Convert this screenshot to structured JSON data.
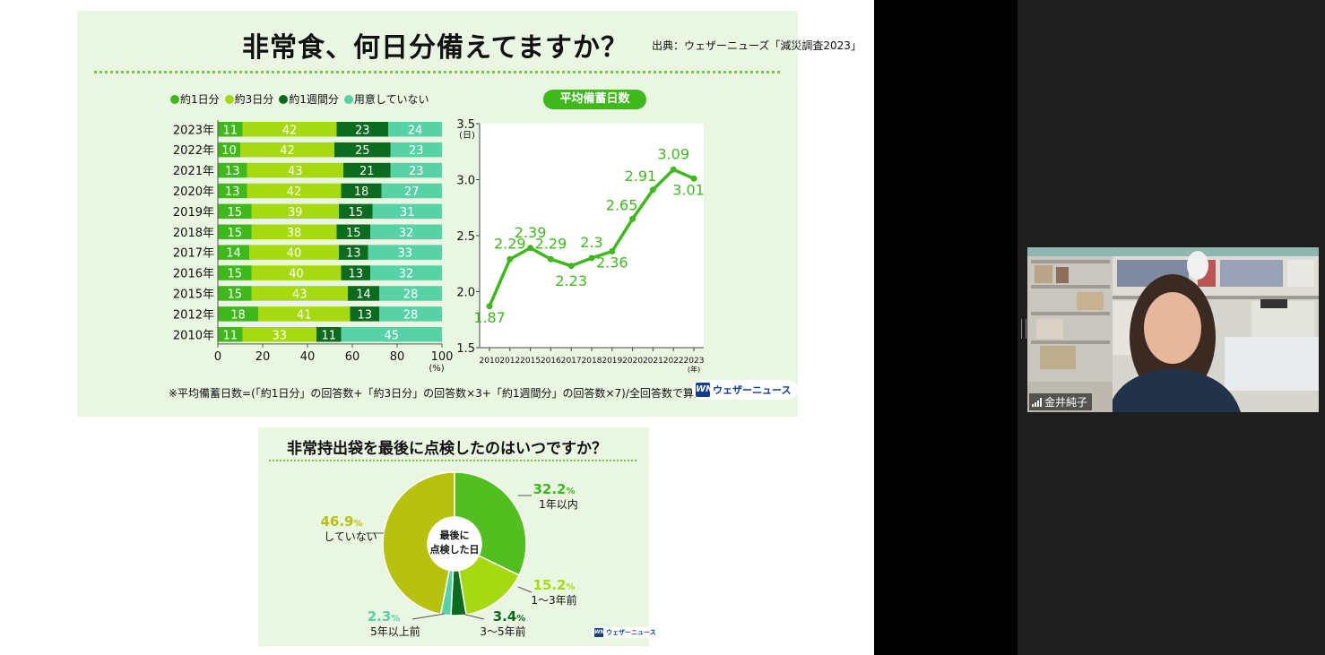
{
  "slide": {
    "title": "非常食、何日分備えてますか？",
    "source": "出典：ウェザーニューズ「減災調査2023」",
    "legend": [
      {
        "label": "約1日分",
        "color": "#3fb81c"
      },
      {
        "label": "約3日分",
        "color": "#a6d90f"
      },
      {
        "label": "約1週間分",
        "color": "#0d6b1f"
      },
      {
        "label": "用意していない",
        "color": "#57d1a6"
      }
    ],
    "avg_label": "平均備蓄日数",
    "footnote": "※平均備蓄日数=(「約1日分」の回答数+「約3日分」の回答数×3+「約1週間分」の回答数×7)/全回答数で算出",
    "logo_text": "ウェザーニュース",
    "logo_mark": "WN",
    "subtitle2": "非常持出袋を最後に点検したのはいつですか？",
    "donut_center": [
      "最後に",
      "点検した日"
    ]
  },
  "chart_data": [
    {
      "type": "bar",
      "orientation": "horizontal-stacked",
      "categories": [
        "2023年",
        "2022年",
        "2021年",
        "2020年",
        "2019年",
        "2018年",
        "2017年",
        "2016年",
        "2015年",
        "2012年",
        "2010年"
      ],
      "series": [
        {
          "name": "約1日分",
          "values": [
            11,
            10,
            13,
            13,
            15,
            15,
            14,
            15,
            15,
            18,
            11
          ]
        },
        {
          "name": "約3日分",
          "values": [
            42,
            42,
            43,
            42,
            39,
            38,
            40,
            40,
            43,
            41,
            33
          ]
        },
        {
          "name": "約1週間分",
          "values": [
            23,
            25,
            21,
            18,
            15,
            15,
            13,
            13,
            14,
            13,
            11
          ]
        },
        {
          "name": "用意していない",
          "values": [
            24,
            23,
            23,
            27,
            31,
            32,
            33,
            32,
            28,
            28,
            45
          ]
        }
      ],
      "xticks": [
        "0",
        "20",
        "40",
        "60",
        "80",
        "100"
      ],
      "xunit": "(%)",
      "xlim": [
        0,
        100
      ]
    },
    {
      "type": "line",
      "title": "平均備蓄日数",
      "x": [
        "2010",
        "2012",
        "2015",
        "2016",
        "2017",
        "2018",
        "2019",
        "2020",
        "2021",
        "2022",
        "2023"
      ],
      "values": [
        1.87,
        2.29,
        2.39,
        2.29,
        2.23,
        2.3,
        2.36,
        2.65,
        2.91,
        3.09,
        3.01
      ],
      "value_labels": [
        "1.87",
        "2.29",
        "2.39",
        "2.29",
        "2.23",
        "2.3",
        "2.36",
        "2.65",
        "2.91",
        "3.09",
        "3.01"
      ],
      "ylim": [
        1.5,
        3.5
      ],
      "yticks": [
        "1.5",
        "2.0",
        "2.5",
        "3.0",
        "3.5"
      ],
      "yunit": "(日)",
      "xunit": "(年)",
      "color": "#3fb81c"
    },
    {
      "type": "pie",
      "slices": [
        {
          "label": "1年以内",
          "pct": "32.2",
          "value": 32.2,
          "color": "#52be1f"
        },
        {
          "label": "1～3年前",
          "pct": "15.2",
          "value": 15.2,
          "color": "#a6d90f"
        },
        {
          "label": "3～5年前",
          "pct": "3.4",
          "value": 3.4,
          "color": "#0d6b1f"
        },
        {
          "label": "5年以上前",
          "pct": "2.3",
          "value": 2.3,
          "color": "#57d1a6"
        },
        {
          "label": "していない",
          "pct": "46.9",
          "value": 46.9,
          "color": "#b6c20e"
        }
      ],
      "pct_suffix": "%"
    }
  ],
  "participant": {
    "name": "金井純子"
  }
}
